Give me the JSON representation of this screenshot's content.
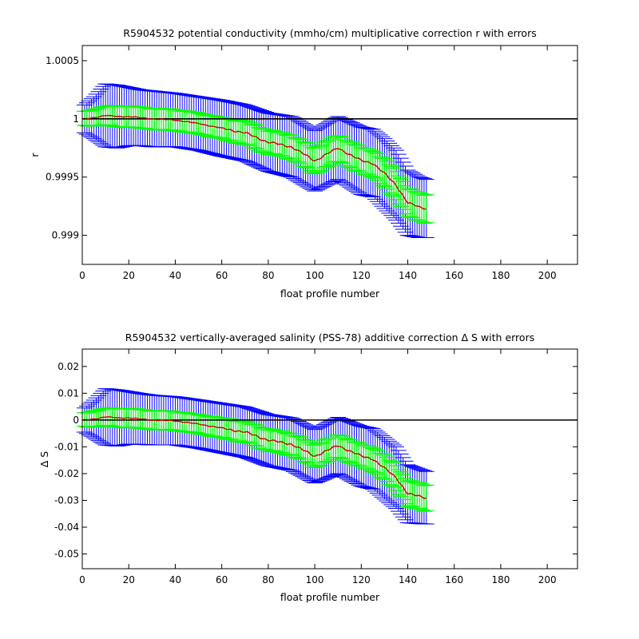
{
  "chart_data": [
    {
      "type": "line",
      "title": "R5904532 potential conductivity (mmho/cm) multiplicative correction r with errors",
      "xlabel": "float profile number",
      "ylabel": "r",
      "xlim": [
        0,
        213
      ],
      "ylim": [
        0.99875,
        1.00063
      ],
      "xticks": [
        "0",
        "20",
        "40",
        "60",
        "80",
        "100",
        "120",
        "140",
        "160",
        "180",
        "200"
      ],
      "yticks": [
        {
          "value": 0.999,
          "label": "0.999"
        },
        {
          "value": 0.9995,
          "label": "0.9995"
        },
        {
          "value": 1,
          "label": "1"
        },
        {
          "value": 1.0005,
          "label": "1.0005"
        }
      ],
      "reference_line": 1,
      "grid": false,
      "legend": "none",
      "colors": {
        "correction": "#cc0000",
        "inner_error": "#00ff00",
        "outer_error": "#0000ff",
        "reference": "#000000"
      },
      "x_range": [
        1,
        148
      ],
      "key_x": [
        1,
        5,
        10,
        15,
        20,
        25,
        30,
        40,
        50,
        60,
        70,
        80,
        90,
        100,
        110,
        120,
        125,
        130,
        135,
        140,
        145,
        148
      ],
      "correction": [
        1.0,
        1.00001,
        1.00003,
        1.00002,
        1.00002,
        1.00001,
        1.0,
        0.99999,
        0.99996,
        0.99992,
        0.99988,
        0.9998,
        0.99976,
        0.99964,
        0.99975,
        0.99964,
        0.99962,
        0.99953,
        0.99943,
        0.99928,
        0.99924,
        0.99923
      ],
      "inner_half_width": [
        6e-05,
        7e-05,
        8e-05,
        9e-05,
        9e-05,
        9e-05,
        9e-05,
        9e-05,
        9e-05,
        9e-05,
        0.0001,
        0.0001,
        0.0001,
        0.00011,
        0.00011,
        0.00011,
        0.00011,
        0.00012,
        0.00012,
        0.00012,
        0.00012,
        0.00012
      ],
      "outer_half_width": [
        0.00012,
        0.00018,
        0.00027,
        0.00027,
        0.00025,
        0.00024,
        0.00024,
        0.00023,
        0.00023,
        0.00024,
        0.00024,
        0.00025,
        0.00026,
        0.00026,
        0.00027,
        0.00029,
        0.00029,
        0.0003,
        0.0003,
        0.00028,
        0.00026,
        0.00025
      ]
    },
    {
      "type": "line",
      "title": "R5904532 vertically-averaged salinity (PSS-78) additive correction Δ S with errors",
      "xlabel": "float profile number",
      "ylabel": "Δ S",
      "xlim": [
        0,
        213
      ],
      "ylim": [
        -0.0555,
        0.0265
      ],
      "xticks": [
        "0",
        "20",
        "40",
        "60",
        "80",
        "100",
        "120",
        "140",
        "160",
        "180",
        "200"
      ],
      "yticks": [
        {
          "value": -0.05,
          "label": "-0.05"
        },
        {
          "value": -0.04,
          "label": "-0.04"
        },
        {
          "value": -0.03,
          "label": "-0.03"
        },
        {
          "value": -0.02,
          "label": "-0.02"
        },
        {
          "value": -0.01,
          "label": "-0.01"
        },
        {
          "value": 0,
          "label": "0"
        },
        {
          "value": 0.01,
          "label": "0.01"
        },
        {
          "value": 0.02,
          "label": "0.02"
        }
      ],
      "reference_line": 0,
      "grid": false,
      "legend": "none",
      "colors": {
        "correction": "#cc0000",
        "inner_error": "#00ff00",
        "outer_error": "#0000ff",
        "reference": "#000000"
      },
      "x_range": [
        1,
        148
      ],
      "key_x": [
        1,
        5,
        10,
        15,
        20,
        25,
        30,
        40,
        50,
        60,
        70,
        80,
        90,
        100,
        110,
        120,
        125,
        130,
        135,
        140,
        145,
        148
      ],
      "correction": [
        0.0,
        0.0004,
        0.0012,
        0.0008,
        0.0008,
        0.0004,
        0.0,
        -0.0003,
        -0.0015,
        -0.003,
        -0.0045,
        -0.0075,
        -0.009,
        -0.0135,
        -0.0095,
        -0.0135,
        -0.0145,
        -0.018,
        -0.0215,
        -0.0275,
        -0.0285,
        -0.029
      ],
      "inner_half_width": [
        0.0025,
        0.003,
        0.0032,
        0.0035,
        0.0035,
        0.0035,
        0.0035,
        0.0035,
        0.0035,
        0.0037,
        0.0038,
        0.004,
        0.004,
        0.0042,
        0.0042,
        0.0043,
        0.0044,
        0.0045,
        0.0046,
        0.0047,
        0.0048,
        0.0048
      ],
      "outer_half_width": [
        0.0045,
        0.007,
        0.0105,
        0.0105,
        0.0098,
        0.0095,
        0.0093,
        0.009,
        0.009,
        0.0092,
        0.0094,
        0.0096,
        0.0098,
        0.01,
        0.0105,
        0.0112,
        0.0113,
        0.0115,
        0.0115,
        0.0108,
        0.0102,
        0.0098
      ]
    }
  ]
}
